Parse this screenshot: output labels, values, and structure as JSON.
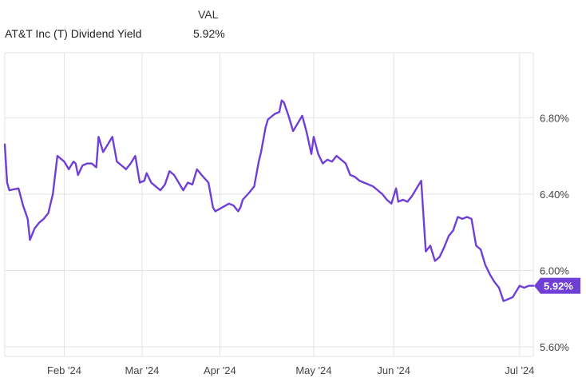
{
  "legend": {
    "column_header": "VAL",
    "series_name": "AT&T Inc (T) Dividend Yield",
    "series_value": "5.92%"
  },
  "chart_data": {
    "type": "line",
    "series": [
      {
        "name": "AT&T Inc (T) Dividend Yield",
        "color": "#6f3fd6",
        "points": [
          [
            "2024-01-02",
            6.66
          ],
          [
            "2024-01-03",
            6.46
          ],
          [
            "2024-01-04",
            6.42
          ],
          [
            "2024-01-08",
            6.43
          ],
          [
            "2024-01-10",
            6.34
          ],
          [
            "2024-01-12",
            6.27
          ],
          [
            "2024-01-13",
            6.16
          ],
          [
            "2024-01-15",
            6.22
          ],
          [
            "2024-01-17",
            6.25
          ],
          [
            "2024-01-19",
            6.27
          ],
          [
            "2024-01-21",
            6.3
          ],
          [
            "2024-01-23",
            6.4
          ],
          [
            "2024-01-25",
            6.6
          ],
          [
            "2024-01-28",
            6.57
          ],
          [
            "2024-01-30",
            6.53
          ],
          [
            "2024-02-01",
            6.57
          ],
          [
            "2024-02-02",
            6.56
          ],
          [
            "2024-02-03",
            6.5
          ],
          [
            "2024-02-05",
            6.55
          ],
          [
            "2024-02-07",
            6.56
          ],
          [
            "2024-02-09",
            6.56
          ],
          [
            "2024-02-11",
            6.54
          ],
          [
            "2024-02-12",
            6.7
          ],
          [
            "2024-02-14",
            6.62
          ],
          [
            "2024-02-16",
            6.66
          ],
          [
            "2024-02-18",
            6.7
          ],
          [
            "2024-02-20",
            6.57
          ],
          [
            "2024-02-22",
            6.55
          ],
          [
            "2024-02-24",
            6.53
          ],
          [
            "2024-02-26",
            6.56
          ],
          [
            "2024-02-28",
            6.6
          ],
          [
            "2024-03-01",
            6.46
          ],
          [
            "2024-03-03",
            6.47
          ],
          [
            "2024-03-04",
            6.51
          ],
          [
            "2024-03-06",
            6.46
          ],
          [
            "2024-03-08",
            6.44
          ],
          [
            "2024-03-10",
            6.42
          ],
          [
            "2024-03-12",
            6.45
          ],
          [
            "2024-03-14",
            6.52
          ],
          [
            "2024-03-16",
            6.5
          ],
          [
            "2024-03-18",
            6.46
          ],
          [
            "2024-03-20",
            6.42
          ],
          [
            "2024-03-22",
            6.46
          ],
          [
            "2024-03-24",
            6.45
          ],
          [
            "2024-03-26",
            6.53
          ],
          [
            "2024-03-28",
            6.5
          ],
          [
            "2024-03-31",
            6.46
          ],
          [
            "2024-04-02",
            6.33
          ],
          [
            "2024-04-03",
            6.31
          ],
          [
            "2024-04-06",
            6.33
          ],
          [
            "2024-04-09",
            6.35
          ],
          [
            "2024-04-11",
            6.34
          ],
          [
            "2024-04-13",
            6.31
          ],
          [
            "2024-04-14",
            6.33
          ],
          [
            "2024-04-15",
            6.37
          ],
          [
            "2024-04-18",
            6.41
          ],
          [
            "2024-04-20",
            6.44
          ],
          [
            "2024-04-22",
            6.57
          ],
          [
            "2024-04-23",
            6.62
          ],
          [
            "2024-04-25",
            6.75
          ],
          [
            "2024-04-26",
            6.79
          ],
          [
            "2024-04-29",
            6.82
          ],
          [
            "2024-05-01",
            6.83
          ],
          [
            "2024-05-02",
            6.89
          ],
          [
            "2024-05-03",
            6.88
          ],
          [
            "2024-05-05",
            6.81
          ],
          [
            "2024-05-07",
            6.73
          ],
          [
            "2024-05-11",
            6.81
          ],
          [
            "2024-05-13",
            6.72
          ],
          [
            "2024-05-15",
            6.61
          ],
          [
            "2024-05-16",
            6.7
          ],
          [
            "2024-05-18",
            6.61
          ],
          [
            "2024-05-20",
            6.56
          ],
          [
            "2024-05-22",
            6.58
          ],
          [
            "2024-05-24",
            6.57
          ],
          [
            "2024-05-26",
            6.6
          ],
          [
            "2024-05-28",
            6.58
          ],
          [
            "2024-05-30",
            6.56
          ],
          [
            "2024-06-01",
            6.5
          ],
          [
            "2024-06-03",
            6.49
          ],
          [
            "2024-06-05",
            6.47
          ],
          [
            "2024-06-07",
            6.46
          ],
          [
            "2024-06-09",
            6.45
          ],
          [
            "2024-06-11",
            6.44
          ],
          [
            "2024-06-13",
            6.42
          ],
          [
            "2024-06-15",
            6.4
          ],
          [
            "2024-06-17",
            6.37
          ],
          [
            "2024-06-19",
            6.35
          ],
          [
            "2024-06-21",
            6.43
          ],
          [
            "2024-06-22",
            6.36
          ],
          [
            "2024-06-24",
            6.37
          ],
          [
            "2024-06-26",
            6.36
          ],
          [
            "2024-06-28",
            6.39
          ],
          [
            "2024-06-30",
            6.43
          ],
          [
            "2024-07-02",
            6.47
          ],
          [
            "2024-07-04",
            6.1
          ],
          [
            "2024-07-06",
            6.13
          ],
          [
            "2024-07-08",
            6.05
          ],
          [
            "2024-07-10",
            6.07
          ],
          [
            "2024-07-12",
            6.12
          ],
          [
            "2024-07-14",
            6.18
          ],
          [
            "2024-07-16",
            6.21
          ],
          [
            "2024-07-18",
            6.28
          ],
          [
            "2024-07-20",
            6.27
          ],
          [
            "2024-07-22",
            6.28
          ],
          [
            "2024-07-24",
            6.27
          ],
          [
            "2024-07-26",
            6.13
          ],
          [
            "2024-07-28",
            6.11
          ],
          [
            "2024-07-30",
            6.03
          ],
          [
            "2024-08-01",
            5.98
          ],
          [
            "2024-08-03",
            5.94
          ],
          [
            "2024-08-05",
            5.91
          ],
          [
            "2024-08-07",
            5.84
          ],
          [
            "2024-08-09",
            5.85
          ],
          [
            "2024-08-11",
            5.86
          ],
          [
            "2024-08-14",
            5.92
          ],
          [
            "2024-08-16",
            5.91
          ],
          [
            "2024-08-18",
            5.92
          ],
          [
            "2024-08-20",
            5.92
          ]
        ]
      }
    ],
    "x_ticks": [
      {
        "date": "2024-01-28",
        "label": "Feb '24"
      },
      {
        "date": "2024-03-02",
        "label": "Mar '24"
      },
      {
        "date": "2024-04-05",
        "label": "Apr '24"
      },
      {
        "date": "2024-05-16",
        "label": "May '24"
      },
      {
        "date": "2024-06-20",
        "label": "Jun '24"
      },
      {
        "date": "2024-08-14",
        "label": "Jul '24"
      }
    ],
    "x_range": [
      "2024-01-02",
      "2024-08-20"
    ],
    "y_ticks": [
      {
        "value": 5.6,
        "label": "5.60%"
      },
      {
        "value": 6.0,
        "label": "6.00%"
      },
      {
        "value": 6.4,
        "label": "6.40%"
      },
      {
        "value": 6.8,
        "label": "6.80%"
      }
    ],
    "ylim": [
      5.55,
      7.14
    ],
    "last_value_label": "5.92%",
    "grid": true
  }
}
